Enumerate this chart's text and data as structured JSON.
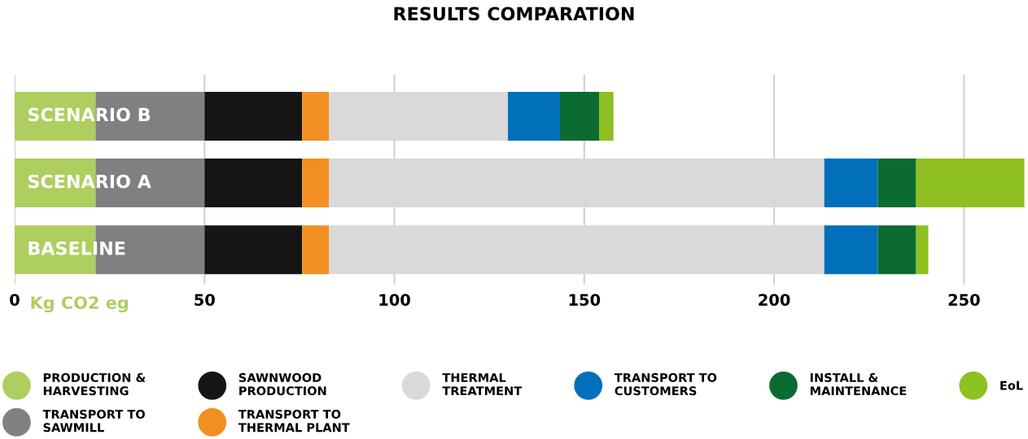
{
  "chart_data": {
    "type": "bar",
    "orientation": "horizontal",
    "stacked": true,
    "title": "RESULTS COMPARATION",
    "xlabel": "Kg CO2 eg",
    "categories": [
      "SCENARIO B",
      "SCENARIO A",
      "BASELINE"
    ],
    "series": [
      {
        "name": "PRODUCTION &\nHARVESTING",
        "color": "#aece5f",
        "values": [
          21.3,
          21.3,
          21.3
        ]
      },
      {
        "name": "TRANSPORT TO\nSAWMILL",
        "color": "#808080",
        "values": [
          28.7,
          28.7,
          28.7
        ]
      },
      {
        "name": "SAWNWOOD\nPRODUCTION",
        "color": "#151515",
        "values": [
          25.7,
          25.7,
          25.7
        ]
      },
      {
        "name": "TRANSPORT TO\nTHERMAL PLANT",
        "color": "#f28f22",
        "values": [
          7.1,
          7.1,
          7.1
        ]
      },
      {
        "name": "THERMAL\nTREATMENT",
        "color": "#d9d9d9",
        "values": [
          47.1,
          130.4,
          130.4
        ]
      },
      {
        "name": "TRANSPORT TO\nCUSTOMERS",
        "color": "#0070ba",
        "values": [
          13.7,
          14.1,
          14.1
        ]
      },
      {
        "name": "INSTALL &\nMAINTENANCE",
        "color": "#0c6b30",
        "values": [
          10.3,
          10.1,
          10.1
        ]
      },
      {
        "name": "EoL",
        "color": "#8fc021",
        "values": [
          3.8,
          28.5,
          3.2
        ]
      }
    ],
    "xlim": [
      0,
      266
    ],
    "xticks": [
      0,
      50,
      100,
      150,
      200,
      250
    ],
    "grid": "x",
    "legend": "bottom"
  }
}
